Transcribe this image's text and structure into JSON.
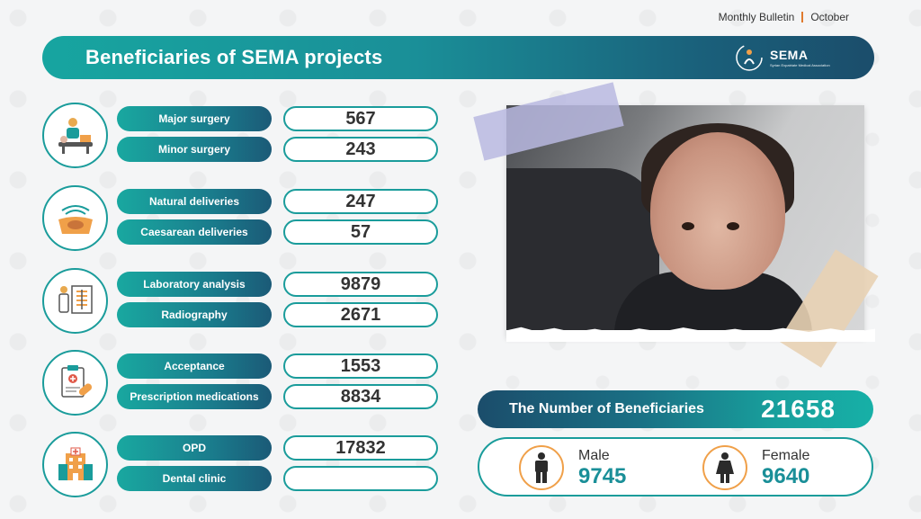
{
  "topbar": {
    "bulletin": "Monthly Bulletin",
    "month": "October"
  },
  "header": {
    "title": "Beneficiaries of SEMA projects",
    "logo_name": "SEMA",
    "logo_sub": "Syrian Expatriate Medical Association"
  },
  "groups": [
    {
      "icon": "surgery-icon",
      "rows": [
        {
          "label": "Major surgery",
          "value": "567"
        },
        {
          "label": "Minor surgery",
          "value": "243"
        }
      ]
    },
    {
      "icon": "delivery-icon",
      "rows": [
        {
          "label": "Natural deliveries",
          "value": "247"
        },
        {
          "label": "Caesarean deliveries",
          "value": "57"
        }
      ]
    },
    {
      "icon": "radiography-icon",
      "rows": [
        {
          "label": "Laboratory analysis",
          "value": "9879"
        },
        {
          "label": "Radiography",
          "value": "2671"
        }
      ]
    },
    {
      "icon": "prescription-icon",
      "rows": [
        {
          "label": "Acceptance",
          "value": "1553"
        },
        {
          "label": "Prescription medications",
          "value": "8834"
        }
      ]
    },
    {
      "icon": "hospital-icon",
      "rows": [
        {
          "label": "OPD",
          "value": "17832"
        },
        {
          "label": "Dental clinic",
          "value": ""
        }
      ]
    }
  ],
  "total": {
    "label": "The Number of Beneficiaries",
    "value": "21658"
  },
  "gender": {
    "male_label": "Male",
    "male_value": "9745",
    "female_label": "Female",
    "female_value": "9640"
  },
  "colors": {
    "teal": "#1a9c9b",
    "navy": "#1b4d6b",
    "orange": "#f0a049"
  }
}
